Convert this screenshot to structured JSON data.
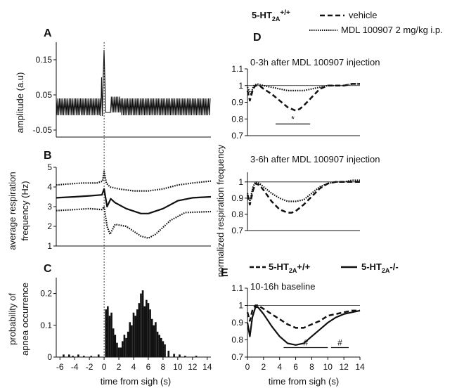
{
  "legend_top": {
    "genotype": "5-HT",
    "genotype_sub": "2A",
    "genotype_sup": "+/+",
    "vehicle": "vehicle",
    "mdl": "MDL 100907 2 mg/kg i.p."
  },
  "legend_e": {
    "wt": "5-HT",
    "wt_sub": "2A",
    "wt_sup": "+/+",
    "ko": "5-HT",
    "ko_sub": "2A",
    "ko_sup": "-/-"
  },
  "chart_data": [
    {
      "panel": "A",
      "type": "line",
      "ylabel": "amplitude (a.u)",
      "yticks": [
        0.15,
        0.05,
        -0.05
      ],
      "ylim": [
        -0.07,
        0.2
      ],
      "xlim": [
        -6.5,
        14.5
      ],
      "series": [
        {
          "style": "solid",
          "x": [],
          "y": []
        }
      ]
    },
    {
      "panel": "B",
      "type": "line",
      "ylabel": "average respiration frequency (Hz)",
      "ylabel_lines": [
        "average respiration",
        "frequency (Hz)"
      ],
      "yticks": [
        5,
        4,
        3,
        2,
        1
      ],
      "ylim": [
        1,
        5
      ],
      "xlim": [
        -6.5,
        14.5
      ],
      "series": [
        {
          "style": "dotted-upper",
          "x": [
            -6.5,
            -5,
            -3,
            -1,
            -0.2,
            0,
            0.3,
            0.8,
            2,
            4,
            6,
            8,
            10,
            12,
            14.5
          ],
          "y": [
            4.1,
            4.15,
            4.2,
            4.2,
            4.3,
            4.8,
            4.2,
            4.0,
            3.9,
            3.8,
            3.8,
            3.9,
            4.1,
            4.2,
            4.3
          ]
        },
        {
          "style": "solid-mean",
          "x": [
            -6.5,
            -4,
            -2,
            -0.3,
            0,
            0.4,
            0.9,
            1.5,
            3,
            5,
            6,
            8,
            10,
            12,
            14.5
          ],
          "y": [
            3.45,
            3.5,
            3.55,
            3.6,
            3.9,
            3.0,
            3.4,
            3.2,
            2.9,
            2.65,
            2.65,
            2.9,
            3.3,
            3.45,
            3.5
          ]
        },
        {
          "style": "dotted-lower",
          "x": [
            -6.5,
            -4,
            -2,
            -0.3,
            0,
            0.4,
            0.8,
            1.5,
            3,
            5,
            6,
            7,
            9,
            11,
            14.5
          ],
          "y": [
            2.8,
            2.85,
            2.9,
            2.85,
            3.0,
            2.0,
            1.6,
            2.1,
            2.0,
            1.5,
            1.4,
            1.6,
            2.3,
            2.7,
            2.75
          ]
        }
      ]
    },
    {
      "panel": "C",
      "type": "bar",
      "ylabel": "probability of apnea occurrence",
      "ylabel_lines": [
        "probability of",
        "apnea occurrence"
      ],
      "xlabel": "time from sigh (s)",
      "xticks": [
        "-6",
        "-4",
        "-2",
        "0",
        "2",
        "4",
        "6",
        "8",
        "10",
        "12",
        "14"
      ],
      "xtick_values": [
        -6,
        -4,
        -2,
        0,
        2,
        4,
        6,
        8,
        10,
        12,
        14
      ],
      "yticks": [
        0.2,
        0.1,
        0
      ],
      "ylim": [
        0,
        0.25
      ],
      "xlim": [
        -6.5,
        14.5
      ],
      "bar_width": 0.25,
      "x": [
        -5.5,
        -4.75,
        -4.25,
        -3.5,
        -2.75,
        -1.75,
        -0.75,
        0.25,
        0.5,
        0.75,
        1,
        1.25,
        1.5,
        1.75,
        2,
        2.25,
        2.5,
        2.75,
        3,
        3.25,
        3.5,
        3.75,
        4,
        4.25,
        4.5,
        4.75,
        5,
        5.25,
        5.5,
        5.75,
        6,
        6.25,
        6.5,
        6.75,
        7,
        7.25,
        7.5,
        7.75,
        8,
        8.25,
        8.75,
        9.5,
        10.25,
        11,
        12.5
      ],
      "values": [
        0.008,
        0.008,
        0.004,
        0.008,
        0.004,
        0.004,
        0.008,
        0.15,
        0.16,
        0.13,
        0.14,
        0.09,
        0.07,
        0.045,
        0.03,
        0.03,
        0.05,
        0.07,
        0.06,
        0.08,
        0.11,
        0.1,
        0.14,
        0.13,
        0.15,
        0.17,
        0.2,
        0.21,
        0.16,
        0.18,
        0.17,
        0.15,
        0.12,
        0.1,
        0.11,
        0.08,
        0.07,
        0.06,
        0.05,
        0.04,
        0.02,
        0.01,
        0.008,
        0.004,
        0.004
      ]
    },
    {
      "panel": "D",
      "type": "line",
      "title": "0-3h after MDL 100907 injection",
      "yticks": [
        1.1,
        1,
        0.9,
        0.8,
        0.7
      ],
      "ylim": [
        0.7,
        1.1
      ],
      "xlim": [
        0,
        14
      ],
      "reference_line": 1,
      "significance": {
        "marker": "*",
        "x_range": [
          3.5,
          7.8
        ],
        "y": 0.77
      },
      "series": [
        {
          "name": "vehicle",
          "style": "dashed",
          "x": [
            0,
            0.3,
            0.7,
            1,
            1.5,
            2,
            3,
            4,
            5,
            6,
            6.5,
            7,
            8,
            9,
            10,
            11,
            12,
            13,
            14
          ],
          "y": [
            0.97,
            0.91,
            0.98,
            1.0,
            1.0,
            0.98,
            0.95,
            0.91,
            0.87,
            0.85,
            0.86,
            0.88,
            0.93,
            0.98,
            1.0,
            1.0,
            1.0,
            1.01,
            1.01
          ]
        },
        {
          "name": "MDL 100907 2 mg/kg i.p.",
          "style": "dotted",
          "x": [
            0,
            0.4,
            0.8,
            1.2,
            2,
            3,
            4,
            5,
            6,
            7,
            8,
            9,
            10,
            11,
            12,
            13,
            14
          ],
          "y": [
            0.99,
            0.95,
            1.0,
            1.01,
            1.0,
            0.99,
            0.98,
            0.97,
            0.97,
            0.97,
            0.98,
            0.99,
            1.0,
            1.0,
            1.0,
            1.01,
            1.01
          ]
        }
      ]
    },
    {
      "panel": "D2",
      "type": "line",
      "title": "3-6h after MDL 100907 injection",
      "yticks": [
        1,
        0.9,
        0.8,
        0.7
      ],
      "ylim": [
        0.7,
        1.06
      ],
      "xlim": [
        0,
        14
      ],
      "reference_line": 1,
      "series": [
        {
          "name": "vehicle",
          "style": "dashed",
          "x": [
            0,
            0.3,
            0.7,
            1,
            1.5,
            2,
            3,
            4,
            5,
            5.5,
            6,
            7,
            8,
            9,
            10,
            11,
            12,
            13,
            14
          ],
          "y": [
            0.92,
            0.86,
            0.95,
            0.99,
            0.98,
            0.95,
            0.88,
            0.83,
            0.81,
            0.81,
            0.82,
            0.86,
            0.91,
            0.96,
            0.99,
            1.0,
            1.0,
            1.0,
            1.0
          ]
        },
        {
          "name": "MDL 100907 2 mg/kg i.p.",
          "style": "dotted",
          "x": [
            0,
            0.3,
            0.7,
            1,
            1.5,
            2,
            3,
            4,
            5,
            6,
            7,
            8,
            9,
            10,
            11,
            12,
            13,
            14
          ],
          "y": [
            0.93,
            0.88,
            0.97,
            1.0,
            0.99,
            0.97,
            0.93,
            0.9,
            0.88,
            0.88,
            0.89,
            0.93,
            0.97,
            0.99,
            1.0,
            1.0,
            1.01,
            1.01
          ]
        }
      ]
    },
    {
      "panel": "E",
      "type": "line",
      "title": "10-16h baseline",
      "xlabel": "time from sigh (s)",
      "xticks": [
        "0",
        "2",
        "4",
        "6",
        "8",
        "10",
        "12",
        "14"
      ],
      "xtick_values": [
        0,
        2,
        4,
        6,
        8,
        10,
        12,
        14
      ],
      "yticks": [
        1.1,
        1,
        0.9,
        0.8,
        0.7
      ],
      "ylim": [
        0.7,
        1.1
      ],
      "xlim": [
        0,
        14
      ],
      "reference_line": 1,
      "significance": [
        {
          "marker": "#",
          "x_range": [
            4.5,
            10
          ],
          "y": 0.755
        },
        {
          "marker": "#",
          "x_range": [
            10.4,
            12.6
          ],
          "y": 0.755
        }
      ],
      "series": [
        {
          "name": "5-HT2A+/+",
          "style": "dashed",
          "x": [
            0,
            0.3,
            0.6,
            1,
            1.3,
            2,
            3,
            4,
            5,
            6,
            7,
            8,
            9,
            10,
            11,
            12,
            13,
            14
          ],
          "y": [
            0.96,
            0.91,
            0.97,
            1.0,
            1.0,
            0.98,
            0.95,
            0.92,
            0.89,
            0.87,
            0.87,
            0.89,
            0.91,
            0.94,
            0.95,
            0.96,
            0.97,
            0.97
          ]
        },
        {
          "name": "5-HT2A-/-",
          "style": "solid",
          "x": [
            0,
            0.3,
            0.6,
            1,
            1.3,
            2,
            3,
            4,
            5,
            6,
            7,
            8,
            9,
            10,
            11,
            12,
            13,
            14
          ],
          "y": [
            0.9,
            0.82,
            0.93,
            0.99,
            0.99,
            0.95,
            0.88,
            0.82,
            0.78,
            0.77,
            0.78,
            0.82,
            0.86,
            0.9,
            0.93,
            0.95,
            0.96,
            0.97
          ]
        }
      ]
    }
  ],
  "axis_labels": {
    "left_x": "time from sigh (s)",
    "right_x": "time from sigh (s)",
    "right_y": "normalized respiration frequency"
  },
  "colors": {
    "ink": "#111111",
    "background": "#ffffff"
  }
}
